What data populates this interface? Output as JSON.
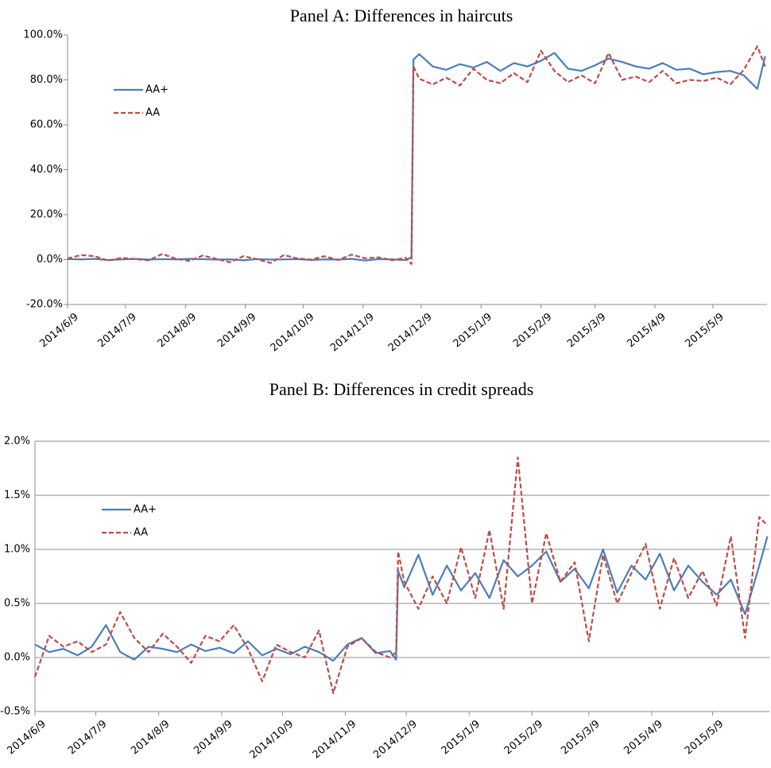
{
  "chart_data": [
    {
      "type": "line",
      "title": "Panel A: Differences in haircuts",
      "x": [
        "2014/6/9",
        "2014/6/16",
        "2014/6/23",
        "2014/6/30",
        "2014/7/7",
        "2014/7/14",
        "2014/7/21",
        "2014/7/28",
        "2014/8/4",
        "2014/8/11",
        "2014/8/18",
        "2014/8/25",
        "2014/9/1",
        "2014/9/8",
        "2014/9/15",
        "2014/9/22",
        "2014/9/29",
        "2014/10/6",
        "2014/10/13",
        "2014/10/20",
        "2014/10/27",
        "2014/11/3",
        "2014/11/10",
        "2014/11/17",
        "2014/11/24",
        "2014/12/1",
        "2014/12/4",
        "2014/12/5",
        "2014/12/8",
        "2014/12/15",
        "2014/12/22",
        "2014/12/29",
        "2015/1/5",
        "2015/1/12",
        "2015/1/19",
        "2015/1/26",
        "2015/2/2",
        "2015/2/9",
        "2015/2/16",
        "2015/2/23",
        "2015/3/2",
        "2015/3/9",
        "2015/3/16",
        "2015/3/23",
        "2015/3/30",
        "2015/4/6",
        "2015/4/13",
        "2015/4/20",
        "2015/4/27",
        "2015/5/4",
        "2015/5/11",
        "2015/5/18",
        "2015/5/25",
        "2015/6/1",
        "2015/6/5"
      ],
      "series": [
        {
          "name": "AA+",
          "color": "#4a7ebb",
          "dashed": false,
          "values": [
            0.2,
            0.1,
            0.3,
            -0.2,
            0.1,
            0.3,
            0.0,
            0.2,
            0.1,
            0.3,
            0.2,
            0.0,
            0.1,
            -0.3,
            0.2,
            0.0,
            0.1,
            0.2,
            -0.2,
            0.1,
            0.0,
            0.3,
            -0.4,
            0.2,
            0.1,
            -0.2,
            1.0,
            89.0,
            91.5,
            86.0,
            84.5,
            87.0,
            85.5,
            88.0,
            84.0,
            87.5,
            86.0,
            88.5,
            92.0,
            85.0,
            84.0,
            86.5,
            89.5,
            88.0,
            86.0,
            85.0,
            87.5,
            84.5,
            85.0,
            82.5,
            83.5,
            84.0,
            82.0,
            76.0,
            90.5
          ]
        },
        {
          "name": "AA",
          "color": "#be4b48",
          "dashed": true,
          "values": [
            0.5,
            2.0,
            1.5,
            -0.5,
            0.8,
            0.2,
            -0.3,
            2.5,
            0.4,
            -0.6,
            1.8,
            0.3,
            -1.2,
            1.5,
            0.2,
            -1.5,
            2.0,
            0.5,
            0.0,
            1.5,
            -0.2,
            2.2,
            0.6,
            1.0,
            -0.3,
            0.8,
            -2.0,
            86.0,
            80.5,
            78.0,
            81.0,
            77.5,
            85.0,
            80.0,
            78.5,
            83.0,
            79.0,
            93.0,
            84.0,
            79.0,
            82.0,
            78.5,
            92.0,
            80.0,
            81.5,
            79.0,
            84.0,
            78.5,
            80.0,
            79.5,
            81.0,
            78.0,
            84.5,
            95.0,
            86.0
          ]
        }
      ],
      "xlim": [
        "2014/6/9",
        "2015/6/6"
      ],
      "xticks": [
        "2014/6/9",
        "2014/7/9",
        "2014/8/9",
        "2014/9/9",
        "2014/10/9",
        "2014/11/9",
        "2014/12/9",
        "2015/1/9",
        "2015/2/9",
        "2015/3/9",
        "2015/4/9",
        "2015/5/9"
      ],
      "ylim": [
        -20,
        100
      ],
      "yticks": [
        {
          "value": -20,
          "label": "-20.0%"
        },
        {
          "value": 0,
          "label": "0.0%"
        },
        {
          "value": 20,
          "label": "20.0%"
        },
        {
          "value": 40,
          "label": "40.0%"
        },
        {
          "value": 60,
          "label": "60.0%"
        },
        {
          "value": 80,
          "label": "80.0%"
        },
        {
          "value": 100,
          "label": "100.0%"
        }
      ],
      "grid": false,
      "legend": "upper left"
    },
    {
      "type": "line",
      "title": "Panel B: Differences in credit spreads",
      "x": [
        "2014/6/9",
        "2014/6/16",
        "2014/6/23",
        "2014/6/30",
        "2014/7/7",
        "2014/7/14",
        "2014/7/21",
        "2014/7/28",
        "2014/8/4",
        "2014/8/11",
        "2014/8/18",
        "2014/8/25",
        "2014/9/1",
        "2014/9/8",
        "2014/9/15",
        "2014/9/22",
        "2014/9/29",
        "2014/10/6",
        "2014/10/13",
        "2014/10/20",
        "2014/10/27",
        "2014/11/3",
        "2014/11/10",
        "2014/11/17",
        "2014/11/24",
        "2014/12/1",
        "2014/12/4",
        "2014/12/5",
        "2014/12/8",
        "2014/12/15",
        "2014/12/22",
        "2014/12/29",
        "2015/1/5",
        "2015/1/12",
        "2015/1/19",
        "2015/1/26",
        "2015/2/2",
        "2015/2/9",
        "2015/2/16",
        "2015/2/23",
        "2015/3/2",
        "2015/3/9",
        "2015/3/16",
        "2015/3/23",
        "2015/3/30",
        "2015/4/6",
        "2015/4/13",
        "2015/4/20",
        "2015/4/27",
        "2015/5/4",
        "2015/5/11",
        "2015/5/18",
        "2015/5/25",
        "2015/6/1",
        "2015/6/5"
      ],
      "series": [
        {
          "name": "AA+",
          "color": "#4a7ebb",
          "dashed": false,
          "values": [
            0.12,
            0.05,
            0.08,
            0.02,
            0.1,
            0.3,
            0.05,
            -0.02,
            0.1,
            0.08,
            0.05,
            0.12,
            0.06,
            0.09,
            0.04,
            0.15,
            0.02,
            0.08,
            0.03,
            0.1,
            0.05,
            -0.03,
            0.12,
            0.18,
            0.04,
            0.06,
            -0.02,
            0.8,
            0.65,
            0.95,
            0.58,
            0.85,
            0.62,
            0.78,
            0.55,
            0.9,
            0.75,
            0.85,
            0.98,
            0.7,
            0.82,
            0.64,
            1.0,
            0.6,
            0.85,
            0.72,
            0.96,
            0.62,
            0.85,
            0.7,
            0.58,
            0.72,
            0.4,
            0.85,
            1.12
          ]
        },
        {
          "name": "AA",
          "color": "#be4b48",
          "dashed": true,
          "values": [
            -0.18,
            0.2,
            0.1,
            0.15,
            0.05,
            0.12,
            0.42,
            0.18,
            0.05,
            0.22,
            0.1,
            -0.05,
            0.2,
            0.15,
            0.3,
            0.08,
            -0.22,
            0.12,
            0.05,
            0.0,
            0.25,
            -0.33,
            0.1,
            0.18,
            0.05,
            0.0,
            0.05,
            0.98,
            0.7,
            0.45,
            0.75,
            0.5,
            1.02,
            0.55,
            1.18,
            0.45,
            1.85,
            0.5,
            1.15,
            0.7,
            0.88,
            0.15,
            0.95,
            0.5,
            0.78,
            1.05,
            0.45,
            0.92,
            0.55,
            0.8,
            0.48,
            1.12,
            0.18,
            1.3,
            1.22
          ]
        }
      ],
      "xlim": [
        "2014/6/9",
        "2015/6/6"
      ],
      "xticks": [
        "2014/6/9",
        "2014/7/9",
        "2014/8/9",
        "2014/9/9",
        "2014/10/9",
        "2014/11/9",
        "2014/12/9",
        "2015/1/9",
        "2015/2/9",
        "2015/3/9",
        "2015/4/9",
        "2015/5/9"
      ],
      "ylim": [
        -0.5,
        2
      ],
      "yticks": [
        {
          "value": -0.5,
          "label": "-0.5%"
        },
        {
          "value": 0,
          "label": "0.0%"
        },
        {
          "value": 0.5,
          "label": "0.5%"
        },
        {
          "value": 1,
          "label": "1.0%"
        },
        {
          "value": 1.5,
          "label": "1.5%"
        },
        {
          "value": 2,
          "label": "2.0%"
        }
      ],
      "grid": true,
      "legend": "upper left"
    }
  ]
}
